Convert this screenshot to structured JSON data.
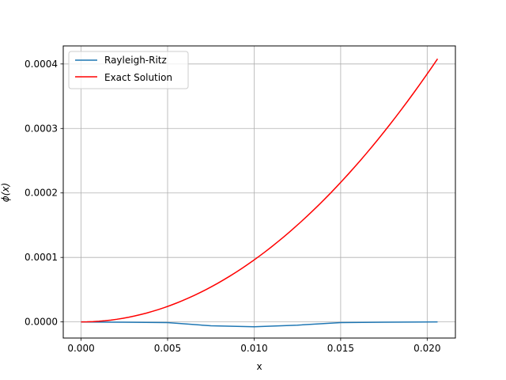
{
  "chart_data": {
    "type": "line",
    "title": "",
    "xlabel": "x",
    "ylabel": "ϕ(x)",
    "xlim": [
      -0.00103,
      0.02163
    ],
    "ylim": [
      -2.5e-05,
      0.000428
    ],
    "xticks": [
      0.0,
      0.005,
      0.01,
      0.015,
      0.02
    ],
    "xtick_labels": [
      "0.000",
      "0.005",
      "0.010",
      "0.015",
      "0.020"
    ],
    "yticks": [
      0.0,
      0.0001,
      0.0002,
      0.0003,
      0.0004
    ],
    "ytick_labels": [
      "0.0000",
      "0.0001",
      "0.0002",
      "0.0003",
      "0.0004"
    ],
    "grid": true,
    "legend_position": "top-left",
    "series": [
      {
        "name": "Rayleigh-Ritz",
        "color": "#1f77b4",
        "x": [
          0.0,
          0.0025,
          0.005,
          0.0075,
          0.01,
          0.0125,
          0.015,
          0.0175,
          0.0206
        ],
        "y": [
          0.0,
          -5e-07,
          -1e-06,
          -6e-06,
          -7.5e-06,
          -5e-06,
          -1e-06,
          -5e-07,
          0.0
        ]
      },
      {
        "name": "Exact Solution",
        "color": "#ff0000",
        "x": [
          0.0,
          0.00206,
          0.00412,
          0.00618,
          0.00824,
          0.0103,
          0.01236,
          0.01442,
          0.01648,
          0.01854,
          0.0206
        ],
        "y": [
          0.0,
          4.08e-06,
          1.632e-05,
          3.672e-05,
          6.528e-05,
          0.000102,
          0.00014688,
          0.00019992,
          0.00026112,
          0.00033048,
          0.000408
        ]
      }
    ]
  }
}
